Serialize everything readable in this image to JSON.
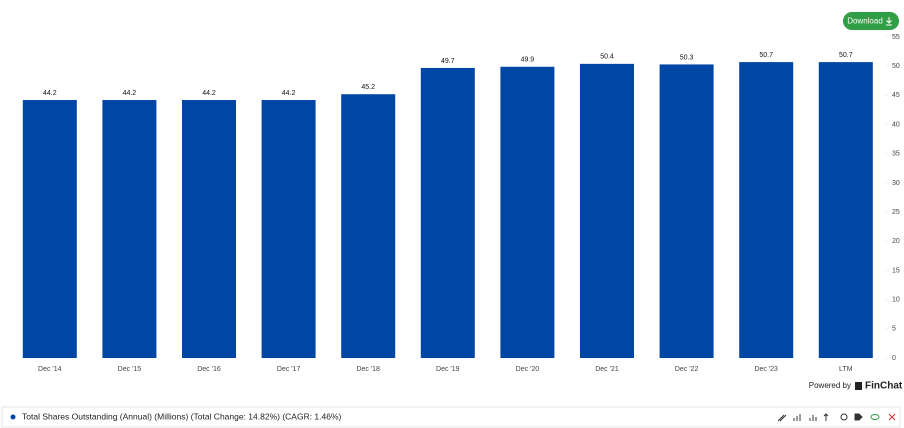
{
  "chart_data": {
    "type": "bar",
    "categories": [
      "Dec '14",
      "Dec '15",
      "Dec '16",
      "Dec '17",
      "Dec '18",
      "Dec '19",
      "Dec '20",
      "Dec '21",
      "Dec '22",
      "Dec '23",
      "LTM"
    ],
    "series": [
      {
        "name": "Total Shares Outstanding (Annual) (Millions) (Total Change: 14.82%) (CAGR: 1.46%)",
        "color": "#0047a5",
        "values": [
          44.2,
          44.2,
          44.2,
          44.2,
          45.2,
          49.7,
          49.9,
          50.4,
          50.3,
          50.7,
          50.7
        ]
      }
    ],
    "ylim": [
      0,
      55
    ],
    "yticks": [
      0,
      5,
      10,
      15,
      20,
      25,
      30,
      35,
      40,
      45,
      50,
      55
    ]
  },
  "ui": {
    "download": "Download",
    "powered_by": "Powered by",
    "brand": "FinChat"
  }
}
